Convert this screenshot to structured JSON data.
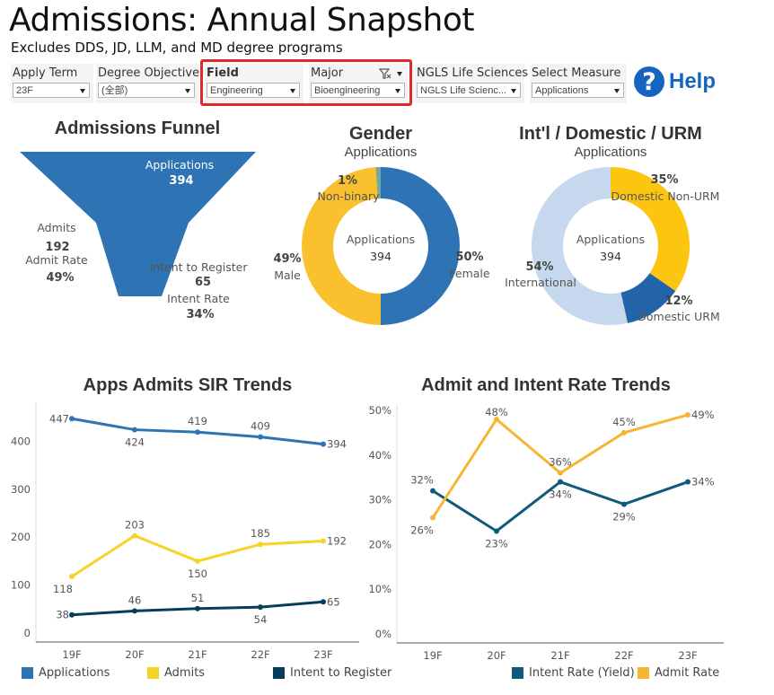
{
  "header": {
    "title": "Admissions: Annual Snapshot",
    "subtitle": "Excludes DDS, JD, LLM, and MD degree programs"
  },
  "filters": [
    {
      "label": "Apply Term",
      "value": "23F"
    },
    {
      "label": "Degree Objective",
      "value": "(全部)"
    },
    {
      "label": "Field",
      "value": "Engineering"
    },
    {
      "label": "Major",
      "value": "Bioengineering"
    },
    {
      "label": "NGLS Life Sciences",
      "value": "NGLS Life Scienc..."
    },
    {
      "label": "Select Measure",
      "value": "Applications"
    }
  ],
  "help": {
    "label": "Help",
    "icon": "question-icon",
    "glyph": "?"
  },
  "colors": {
    "applications": "#2e73b4",
    "admits": "#f5d327",
    "intent": "#073d5c",
    "female": "#2e73b4",
    "male": "#fbc02d",
    "nonbinary": "#76a99d",
    "international": "#c6d8ed",
    "domestic_non_urm": "#fcc50f",
    "domestic_urm": "#2364a8",
    "intent_rate": "#0f5a7b",
    "admit_rate": "#f6b532"
  },
  "funnel": {
    "title": "Admissions Funnel",
    "applications_label": "Applications",
    "applications_value": "394",
    "admits_label": "Admits",
    "admits_value": "192",
    "admit_rate_label": "Admit Rate",
    "admit_rate_value": "49%",
    "intent_label": "Intent to Register",
    "intent_value": "65",
    "intent_rate_label": "Intent Rate",
    "intent_rate_value": "34%"
  },
  "gender": {
    "title": "Gender",
    "subtitle": "Applications",
    "center_label": "Applications",
    "center_value": "394",
    "slices": [
      {
        "name": "Female",
        "pct": 50,
        "label": "50%"
      },
      {
        "name": "Male",
        "pct": 49,
        "label": "49%"
      },
      {
        "name": "Non-binary",
        "pct": 1,
        "label": "1%"
      }
    ]
  },
  "urm": {
    "title": "Int'l / Domestic / URM",
    "subtitle": "Applications",
    "center_label": "Applications",
    "center_value": "394",
    "slices": [
      {
        "name": "Domestic Non-URM",
        "pct": 35,
        "label": "35%"
      },
      {
        "name": "Domestic URM",
        "pct": 12,
        "label": "12%"
      },
      {
        "name": "International",
        "pct": 54,
        "label": "54%"
      }
    ]
  },
  "chart_data": [
    {
      "type": "line",
      "title": "Apps Admits SIR Trends",
      "categories": [
        "19F",
        "20F",
        "21F",
        "22F",
        "23F"
      ],
      "ylim": [
        0,
        470
      ],
      "yticks": [
        0,
        100,
        200,
        300,
        400
      ],
      "series": [
        {
          "name": "Applications",
          "values": [
            447,
            424,
            419,
            409,
            394
          ]
        },
        {
          "name": "Admits",
          "values": [
            118,
            203,
            150,
            185,
            192
          ]
        },
        {
          "name": "Intent to Register",
          "values": [
            38,
            46,
            51,
            54,
            65
          ]
        }
      ]
    },
    {
      "type": "line",
      "title": "Admit and Intent Rate Trends",
      "categories": [
        "19F",
        "20F",
        "21F",
        "22F",
        "23F"
      ],
      "ylim": [
        0,
        50
      ],
      "yticks": [
        "0%",
        "10%",
        "20%",
        "30%",
        "40%",
        "50%"
      ],
      "series": [
        {
          "name": "Intent Rate (Yield)",
          "values": [
            32,
            23,
            34,
            29,
            34
          ]
        },
        {
          "name": "Admit Rate",
          "values": [
            26,
            48,
            36,
            45,
            49
          ]
        }
      ]
    }
  ]
}
